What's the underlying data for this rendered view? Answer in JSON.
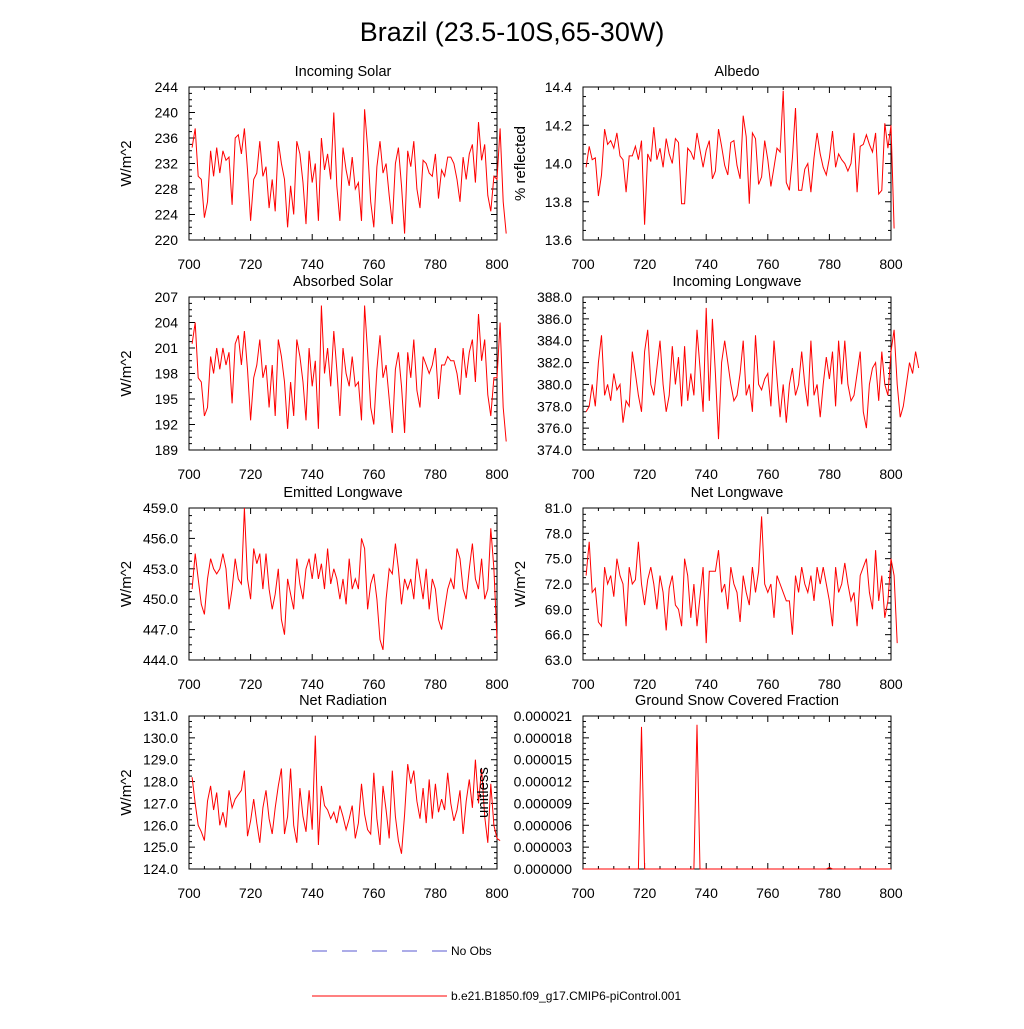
{
  "figure": {
    "title": "Brazil (23.5-10S,65-30W)",
    "line_color": "#ff0000",
    "obs_color": "#5a5ad0"
  },
  "legend": {
    "no_obs": "No Obs",
    "model": "b.e21.B1850.f09_g17.CMIP6-piControl.001"
  },
  "chart_data": [
    {
      "type": "line",
      "title": "Incoming Solar",
      "ylabel": "W/m^2",
      "xlim": [
        700,
        800
      ],
      "ylim": [
        220,
        244
      ],
      "xticks": [
        "700",
        "720",
        "740",
        "760",
        "780",
        "800"
      ],
      "yticks": [
        "220",
        "224",
        "228",
        "232",
        "236",
        "240",
        "244"
      ],
      "x_start": 701,
      "values": [
        234.5,
        237.5,
        230,
        229.5,
        223.5,
        226,
        234,
        230,
        234.5,
        230.5,
        234,
        232.5,
        233,
        225.5,
        236,
        236.5,
        233.5,
        237.5,
        231,
        223,
        229.5,
        230.5,
        235.5,
        230,
        231.5,
        225,
        229.5,
        224.5,
        235.5,
        232,
        229.5,
        222,
        228.5,
        224,
        235.5,
        233.5,
        229,
        222.5,
        234,
        229,
        232,
        223,
        236,
        231,
        233.5,
        229.5,
        240,
        228.5,
        223,
        234.5,
        231,
        228.5,
        233,
        228,
        229,
        223,
        240.5,
        234.5,
        226,
        222,
        231.5,
        235.5,
        230.5,
        232,
        227,
        222.5,
        232,
        234.5,
        228.5,
        221,
        234,
        231.5,
        235.5,
        228,
        225,
        232.5,
        232,
        230.5,
        230,
        233.5,
        226.5,
        231,
        230,
        233,
        233,
        232,
        229.5,
        226,
        233,
        229.5,
        233.5,
        235,
        229,
        238.5,
        232.5,
        235,
        227,
        224.5,
        230,
        229.5,
        237.5,
        226,
        221
      ]
    },
    {
      "type": "line",
      "title": "Albedo",
      "ylabel": "% reflected",
      "xlim": [
        700,
        800
      ],
      "ylim": [
        13.6,
        14.4
      ],
      "xticks": [
        "700",
        "720",
        "740",
        "760",
        "780",
        "800"
      ],
      "yticks": [
        "13.6",
        "13.8",
        "14.0",
        "14.2",
        "14.4"
      ],
      "x_start": 701,
      "values": [
        13.98,
        14.09,
        14.02,
        14.03,
        13.83,
        13.94,
        14.18,
        14.1,
        14.12,
        14.08,
        14.16,
        14.04,
        14.02,
        13.85,
        14.04,
        14.04,
        14.09,
        14.02,
        14.12,
        13.68,
        14.05,
        14.01,
        14.19,
        14.02,
        14.08,
        13.98,
        14.13,
        14.05,
        14.0,
        14.13,
        14.11,
        13.79,
        13.79,
        14.08,
        14.06,
        14.02,
        14.16,
        14.07,
        13.98,
        14.07,
        14.12,
        13.92,
        13.96,
        14.18,
        14.09,
        13.99,
        13.94,
        14.11,
        14.12,
        13.99,
        13.92,
        14.25,
        14.14,
        13.79,
        14.16,
        14.13,
        13.89,
        13.93,
        14.12,
        14.02,
        13.88,
        13.98,
        14.08,
        14.06,
        14.38,
        13.9,
        13.86,
        14.03,
        14.29,
        13.86,
        13.86,
        13.97,
        14.0,
        13.85,
        14.03,
        14.16,
        14.05,
        13.98,
        13.94,
        14.03,
        14.17,
        13.98,
        14.05,
        14.02,
        14.0,
        13.96,
        14.0,
        14.16,
        13.85,
        14.09,
        14.1,
        14.15,
        14.1,
        14.06,
        14.16,
        13.84,
        13.86,
        14.21,
        14.08,
        14.2,
        13.66
      ]
    },
    {
      "type": "line",
      "title": "Absorbed Solar",
      "ylabel": "W/m^2",
      "xlim": [
        700,
        800
      ],
      "ylim": [
        189,
        207
      ],
      "xticks": [
        "700",
        "720",
        "740",
        "760",
        "780",
        "800"
      ],
      "yticks": [
        "189",
        "192",
        "195",
        "198",
        "201",
        "204",
        "207"
      ],
      "x_start": 701,
      "values": [
        201.5,
        204,
        197.5,
        197,
        193,
        194,
        200,
        198,
        201,
        198.5,
        201,
        199,
        200.5,
        194.5,
        201.5,
        202.5,
        199,
        203,
        198.5,
        192.5,
        197.5,
        199,
        202,
        197.5,
        199,
        194,
        199,
        193,
        202,
        200,
        197,
        191.5,
        197,
        193,
        202,
        200,
        197,
        192.5,
        201,
        196.5,
        199.5,
        191.5,
        206,
        198,
        201,
        196.5,
        203,
        198.5,
        193,
        201,
        198,
        196.5,
        200,
        196.5,
        197,
        192.5,
        206,
        200.5,
        194,
        192,
        198.5,
        202.5,
        197.5,
        199,
        195,
        191,
        198.5,
        200.5,
        196.5,
        191,
        200.5,
        197.5,
        202,
        196,
        194,
        200,
        199,
        198,
        199,
        201,
        195,
        199,
        199,
        200,
        199.5,
        199.5,
        198,
        195.5,
        201,
        197.5,
        200.5,
        202,
        197,
        205,
        199.5,
        202,
        195.5,
        193,
        197.5,
        197.5,
        204,
        194,
        190
      ]
    },
    {
      "type": "line",
      "title": "Incoming Longwave",
      "ylabel": "",
      "xlim": [
        700,
        800
      ],
      "ylim": [
        374,
        388
      ],
      "xticks": [
        "700",
        "720",
        "740",
        "760",
        "780",
        "800"
      ],
      "yticks": [
        "374.0",
        "376.0",
        "378.0",
        "380.0",
        "382.0",
        "384.0",
        "386.0",
        "388.0"
      ],
      "x_start": 701,
      "values": [
        377.5,
        378,
        380,
        378,
        382,
        384.5,
        379,
        380,
        378.5,
        381,
        379.5,
        380,
        376.5,
        378.5,
        378,
        383,
        381,
        379,
        377.5,
        383,
        385,
        380,
        379,
        381.5,
        384,
        380,
        377.5,
        379,
        383.5,
        380,
        382.5,
        378,
        383.5,
        378.5,
        381,
        379,
        385,
        381.5,
        377.5,
        387,
        378.5,
        386,
        381,
        375,
        382,
        384,
        382,
        380,
        378.5,
        379,
        381,
        384,
        379,
        380,
        377.5,
        384.5,
        380,
        379.5,
        380.5,
        381,
        378,
        384,
        380.5,
        377,
        380,
        376.5,
        380,
        381.5,
        379,
        380,
        383,
        380,
        378,
        384,
        379,
        380,
        377,
        380,
        382.5,
        380.5,
        383,
        378,
        384,
        380,
        384,
        380,
        378.5,
        379,
        381,
        383,
        377.5,
        376,
        380,
        381.5,
        382,
        378.5,
        383,
        380,
        379,
        383,
        385,
        380,
        377,
        378,
        380,
        382,
        381,
        383,
        381.5
      ]
    },
    {
      "type": "line",
      "title": "Emitted Longwave",
      "ylabel": "W/m^2",
      "xlim": [
        700,
        800
      ],
      "ylim": [
        444,
        459
      ],
      "xticks": [
        "700",
        "720",
        "740",
        "760",
        "780",
        "800"
      ],
      "yticks": [
        "444.0",
        "447.0",
        "450.0",
        "453.0",
        "456.0",
        "459.0"
      ],
      "x_start": 701,
      "values": [
        451,
        454.5,
        452,
        449.5,
        448.5,
        452,
        454,
        453,
        452.5,
        453,
        454.5,
        453,
        449,
        451,
        454,
        452,
        451.5,
        459,
        452,
        450,
        455,
        453.5,
        454.5,
        451,
        454.5,
        451,
        449,
        450.5,
        453,
        448,
        446.5,
        452,
        450.5,
        449,
        454,
        451.5,
        450,
        453,
        454,
        452,
        454.5,
        452,
        453.5,
        451,
        455,
        451.5,
        453,
        452,
        450,
        452,
        449.5,
        454,
        451,
        452,
        451,
        456,
        455,
        449,
        451.5,
        452.5,
        450,
        446,
        445,
        450,
        453,
        452.5,
        455.5,
        453,
        449.5,
        452,
        451,
        452,
        450,
        454,
        452,
        450,
        453,
        449,
        452,
        451,
        448,
        447,
        449,
        451,
        452,
        451,
        455,
        454,
        451,
        450,
        453,
        455.5,
        452,
        451,
        454,
        450,
        451,
        457,
        453,
        446
      ]
    },
    {
      "type": "line",
      "title": "Net Longwave",
      "ylabel": "W/m^2",
      "xlim": [
        700,
        800
      ],
      "ylim": [
        63,
        81
      ],
      "xticks": [
        "700",
        "720",
        "740",
        "760",
        "780",
        "800"
      ],
      "yticks": [
        "63.0",
        "66.0",
        "69.0",
        "72.0",
        "75.0",
        "78.0",
        "81.0"
      ],
      "x_start": 701,
      "values": [
        73,
        77,
        71,
        71.5,
        67.5,
        67,
        74,
        72,
        73,
        70.5,
        75,
        73,
        72,
        67,
        74,
        72,
        72.5,
        77,
        72,
        69.5,
        72.5,
        74,
        72,
        69,
        73,
        71,
        66.5,
        71.5,
        73,
        69.5,
        69,
        67,
        75,
        73,
        68,
        72,
        67,
        70.5,
        74,
        65,
        73.5,
        73.5,
        73.5,
        76,
        71,
        72,
        69,
        74,
        72,
        71,
        67.5,
        73,
        71,
        69.5,
        74,
        71,
        73.5,
        80,
        72,
        71,
        72,
        68,
        73,
        72,
        71,
        70,
        70,
        66,
        73,
        71,
        74,
        72,
        71,
        73,
        70,
        74,
        72,
        74,
        72,
        70,
        67,
        74,
        71,
        72,
        74.5,
        72,
        70,
        71,
        67,
        73,
        74,
        75,
        71,
        69,
        76,
        70,
        73,
        68,
        70,
        75,
        73,
        65
      ]
    },
    {
      "type": "line",
      "title": "Net Radiation",
      "ylabel": "W/m^2",
      "xlim": [
        700,
        800
      ],
      "ylim": [
        124,
        131
      ],
      "xticks": [
        "700",
        "720",
        "740",
        "760",
        "780",
        "800"
      ],
      "yticks": [
        "124.0",
        "125.0",
        "126.0",
        "127.0",
        "128.0",
        "129.0",
        "130.0",
        "131.0"
      ],
      "x_start": 701,
      "values": [
        128.2,
        127,
        126,
        125.7,
        125.3,
        127.1,
        127.8,
        126.7,
        127.5,
        126,
        126.6,
        125.9,
        127.6,
        126.8,
        127.2,
        127.4,
        127.6,
        128.5,
        125.5,
        126.2,
        127.2,
        126.1,
        125.2,
        126.8,
        127.6,
        126.3,
        125.6,
        126.8,
        127.8,
        128.6,
        125.6,
        126.4,
        128.6,
        126,
        125.2,
        127.7,
        126.4,
        125.7,
        127.6,
        125.8,
        130.1,
        125.1,
        127.8,
        126.9,
        126.7,
        126.3,
        126.6,
        126.1,
        126.9,
        126.4,
        125.8,
        126.3,
        126.9,
        125.4,
        126.1,
        127.9,
        126.5,
        125.8,
        125.6,
        128.4,
        126.3,
        125.1,
        127.8,
        126.7,
        125.4,
        128.5,
        126.4,
        125.3,
        124.7,
        126.5,
        128.8,
        127.9,
        128.5,
        127.1,
        126.3,
        127.7,
        126.1,
        128.1,
        126.3,
        127.9,
        126.6,
        127.2,
        126.7,
        128.4,
        127,
        126.2,
        126.7,
        127.6,
        125.6,
        127.1,
        128.1,
        126.8,
        129,
        127,
        128.6,
        126.4,
        125.2,
        127.9,
        126,
        125.4,
        125.3
      ]
    },
    {
      "type": "line",
      "title": "Ground Snow Covered Fraction",
      "ylabel": "unitless",
      "xlim": [
        700,
        800
      ],
      "ylim": [
        0,
        2.1e-05
      ],
      "xticks": [
        "700",
        "720",
        "740",
        "760",
        "780",
        "800"
      ],
      "yticks": [
        "0.000000",
        "0.000003",
        "0.000006",
        "0.000009",
        "0.000012",
        "0.000015",
        "0.000018",
        "0.000021"
      ],
      "x": [
        700,
        718,
        719,
        720,
        736,
        737,
        738,
        779,
        780,
        781,
        782,
        800
      ],
      "values": [
        0,
        0,
        1.95e-05,
        0,
        0,
        1.98e-05,
        0,
        0,
        2e-07,
        0,
        0,
        0
      ]
    }
  ]
}
